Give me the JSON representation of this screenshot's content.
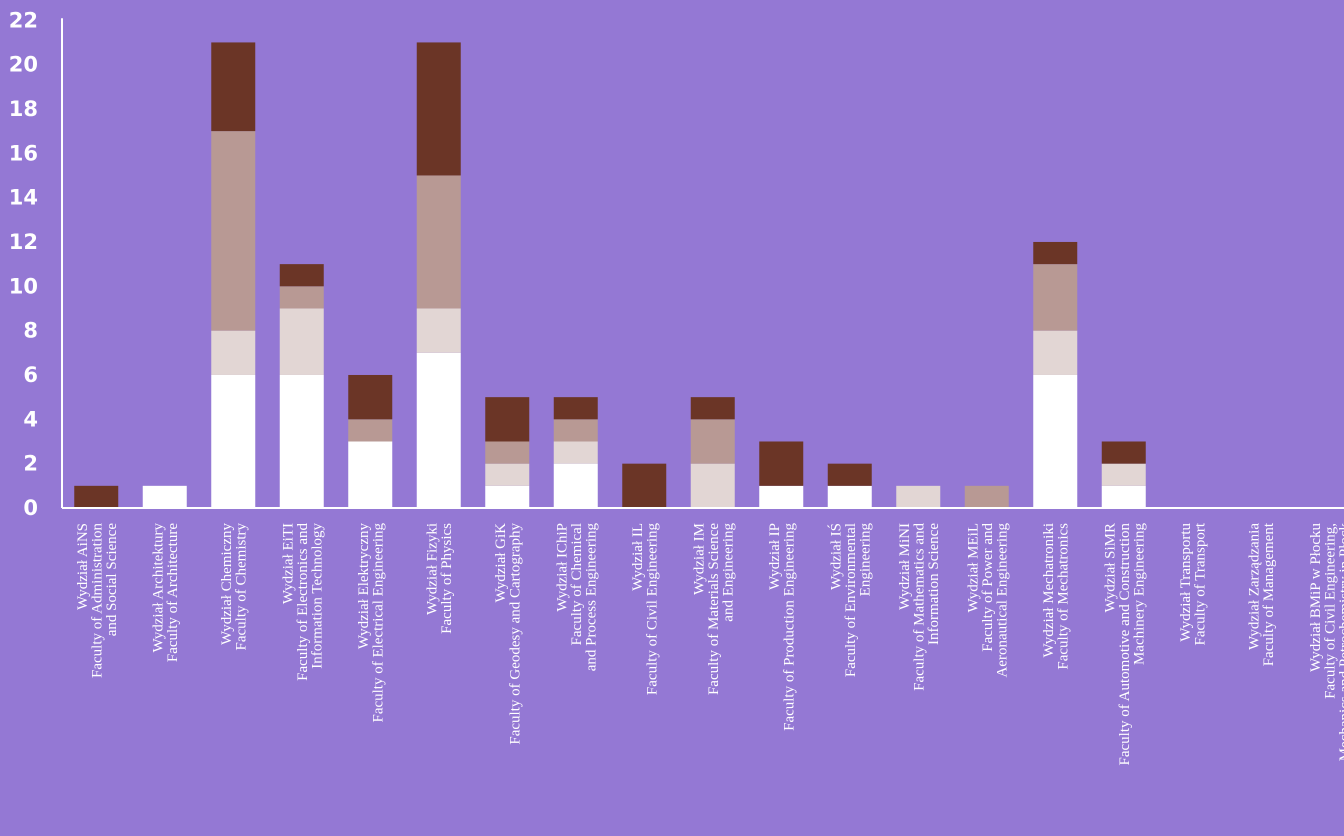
{
  "colors": {
    "background": "#9478d4",
    "axis": "#ffffff",
    "text": "#ffffff"
  },
  "chart_data": {
    "type": "bar",
    "stacked": true,
    "ylim": [
      0,
      22
    ],
    "yticks": [
      0,
      2,
      4,
      6,
      8,
      10,
      12,
      14,
      16,
      18,
      20,
      22
    ],
    "grid": false,
    "title": "",
    "xlabel": "",
    "ylabel": "",
    "categories": [
      [
        "Wydział AiNS",
        "Faculty of Administration",
        "and Social Science"
      ],
      [
        "Wydział Architektury",
        "Faculty of Architecture"
      ],
      [
        "Wydział Chemiczny",
        "Faculty of Chemistry"
      ],
      [
        "Wydział EiTI",
        "Faculty of Electronics and",
        "Information Technology"
      ],
      [
        "Wydział Elektryczny",
        "Faculty of Electrical Engineering"
      ],
      [
        "Wydział Fizyki",
        "Faculty of Physics"
      ],
      [
        "Wydział GiK",
        "Faculty of Geodesy and Cartography"
      ],
      [
        "Wydział IChiP",
        "Faculty of Chemical",
        "and Process Engineering"
      ],
      [
        "Wydział IL",
        "Faculty of Civil Engineering"
      ],
      [
        "Wydział IM",
        "Faculty of Materials Science",
        "and Engineering"
      ],
      [
        "Wydział IP",
        "Faculty of Production Engineering"
      ],
      [
        "Wydział IŚ",
        "Faculty of Environmental",
        "Engineering"
      ],
      [
        "Wydział MiNI",
        "Faculty of Mathematics and",
        "Information Science"
      ],
      [
        "Wydział MEiL",
        "Faculty of Power and",
        "Aeronautical Engineering"
      ],
      [
        "Wydział Mechatroniki",
        "Faculty of Mechatronics"
      ],
      [
        "Wydział SiMR",
        "Faculty of Automotive and Construction",
        "Machinery Engineering"
      ],
      [
        "Wydział Transportu",
        "Faculty of Transport"
      ],
      [
        "Wydział Zarządzania",
        "Faculty of Management"
      ],
      [
        "Wydział BMiP w Płocku",
        "Faculty of Civil Engineering,",
        "Mechanics and Petrochemistry in Płock"
      ]
    ],
    "series": [
      {
        "color": "#ffffff",
        "values": [
          0,
          1,
          6,
          6,
          3,
          7,
          1,
          2,
          0,
          0,
          1,
          1,
          0,
          0,
          6,
          1,
          0,
          0,
          0
        ]
      },
      {
        "color": "#e2d6d4",
        "values": [
          0,
          0,
          2,
          3,
          0,
          2,
          1,
          1,
          0,
          2,
          0,
          0,
          1,
          0,
          2,
          1,
          0,
          0,
          0
        ]
      },
      {
        "color": "#b89994",
        "values": [
          0,
          0,
          9,
          1,
          1,
          6,
          1,
          1,
          0,
          2,
          0,
          0,
          0,
          1,
          3,
          0,
          0,
          0,
          0
        ]
      },
      {
        "color": "#6b3526",
        "values": [
          1,
          0,
          4,
          1,
          2,
          6,
          2,
          1,
          2,
          1,
          2,
          1,
          0,
          0,
          1,
          1,
          0,
          0,
          0
        ]
      }
    ]
  }
}
